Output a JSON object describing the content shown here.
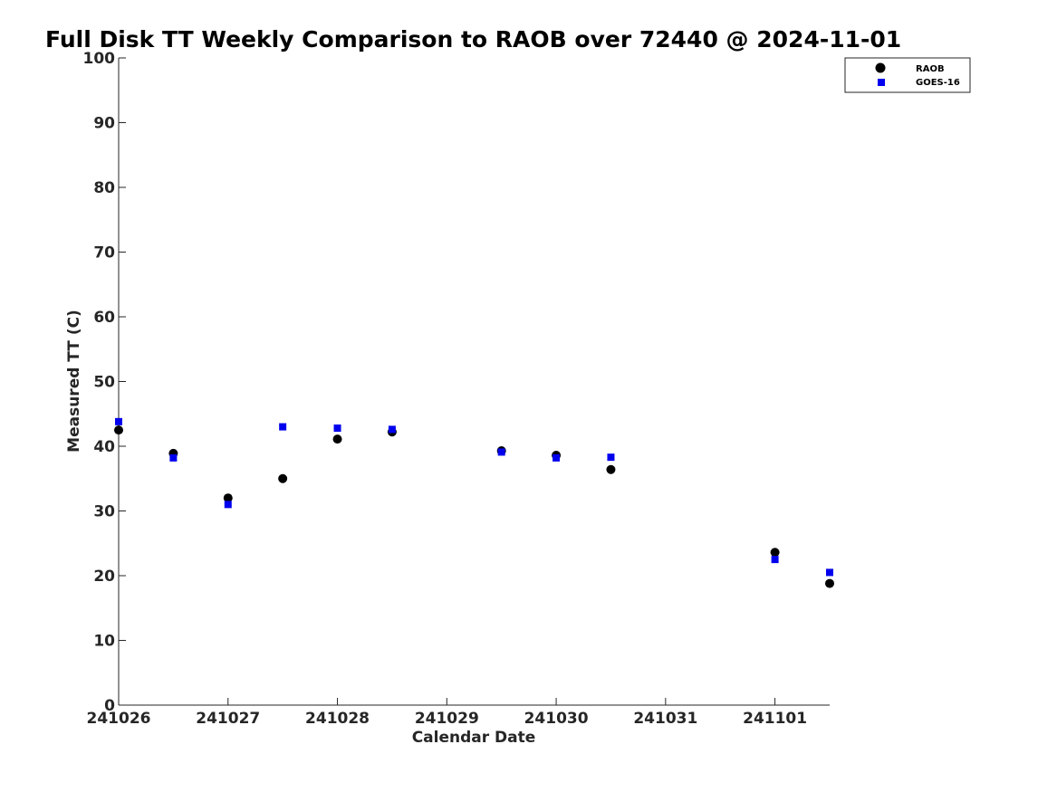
{
  "chart_data": {
    "type": "scatter",
    "title": "Full Disk TT Weekly Comparison to RAOB over 72440 @ 2024-11-01",
    "xlabel": "Calendar Date",
    "ylabel": "Measured TT (C)",
    "xlim": [
      "241026",
      "241101 12:00"
    ],
    "ylim": [
      0,
      100
    ],
    "x_ticks": [
      "241026",
      "241027",
      "241028",
      "241029",
      "241030",
      "241031",
      "241101"
    ],
    "y_ticks": [
      0,
      10,
      20,
      30,
      40,
      50,
      60,
      70,
      80,
      90,
      100
    ],
    "grid": false,
    "legend_position": "top-right",
    "series": [
      {
        "name": "RAOB",
        "color": "#000000",
        "marker": "circle",
        "points": [
          {
            "x": "241026 00:00",
            "y": 42.5
          },
          {
            "x": "241026 12:00",
            "y": 38.9
          },
          {
            "x": "241027 00:00",
            "y": 32.0
          },
          {
            "x": "241027 12:00",
            "y": 35.0
          },
          {
            "x": "241028 00:00",
            "y": 41.1
          },
          {
            "x": "241028 12:00",
            "y": 42.2
          },
          {
            "x": "241029 12:00",
            "y": 39.3
          },
          {
            "x": "241030 00:00",
            "y": 38.6
          },
          {
            "x": "241030 12:00",
            "y": 36.4
          },
          {
            "x": "241101 00:00",
            "y": 23.6
          },
          {
            "x": "241101 12:00",
            "y": 18.8
          }
        ]
      },
      {
        "name": "GOES-16",
        "color": "#0000ee",
        "marker": "square",
        "points": [
          {
            "x": "241026 00:00",
            "y": 43.8
          },
          {
            "x": "241026 12:00",
            "y": 38.2
          },
          {
            "x": "241027 00:00",
            "y": 31.0
          },
          {
            "x": "241027 12:00",
            "y": 43.0
          },
          {
            "x": "241028 00:00",
            "y": 42.8
          },
          {
            "x": "241028 12:00",
            "y": 42.6
          },
          {
            "x": "241029 12:00",
            "y": 39.1
          },
          {
            "x": "241030 00:00",
            "y": 38.2
          },
          {
            "x": "241030 12:00",
            "y": 38.3
          },
          {
            "x": "241101 00:00",
            "y": 22.5
          },
          {
            "x": "241101 12:00",
            "y": 20.5
          }
        ]
      }
    ]
  }
}
